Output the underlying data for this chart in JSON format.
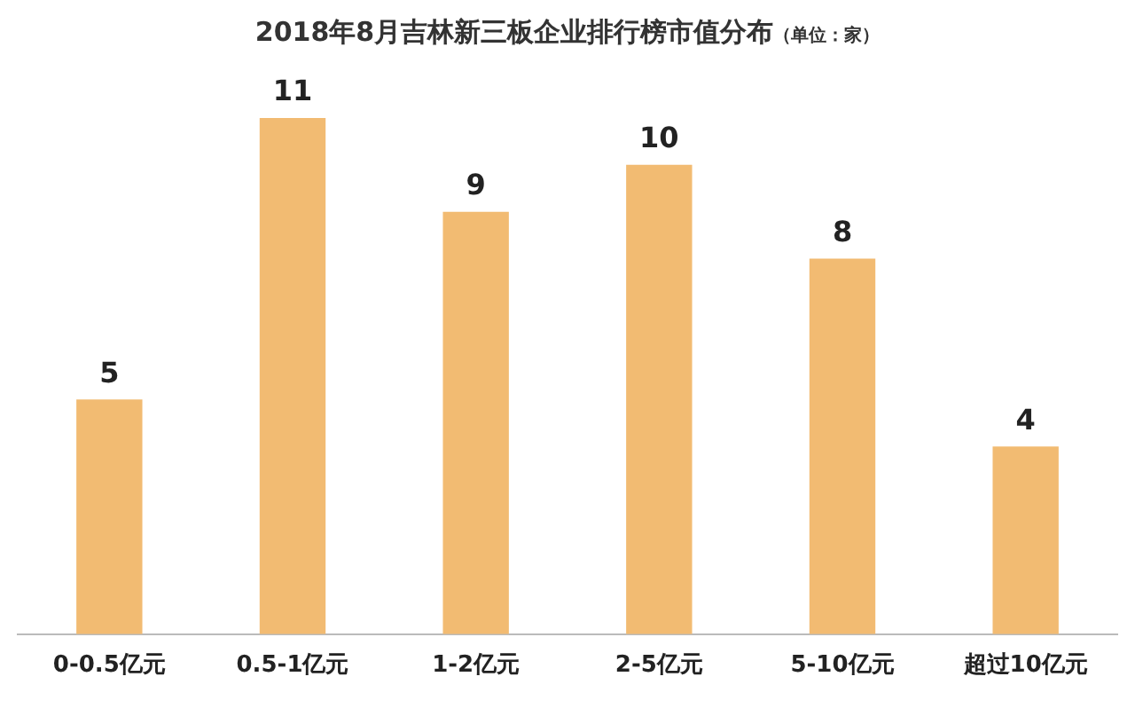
{
  "chart_data": {
    "type": "bar",
    "title": "2018年8月吉林新三板企业排行榜市值分布",
    "subtitle": "（单位：家）",
    "categories": [
      "0-0.5亿元",
      "0.5-1亿元",
      "1-2亿元",
      "2-5亿元",
      "5-10亿元",
      "超过10亿元"
    ],
    "values": [
      5,
      11,
      9,
      10,
      8,
      4
    ],
    "color": "#f2bb72",
    "data_labels": true,
    "grid": false,
    "legend": false
  }
}
